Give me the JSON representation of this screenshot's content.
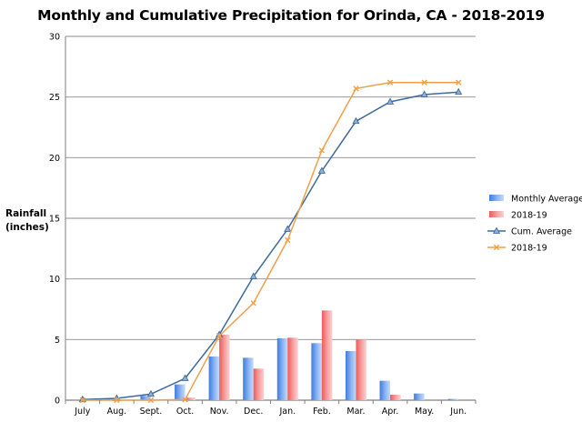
{
  "chart_data": {
    "type": "bar",
    "title": "Monthly and Cumulative Precipitation for Orinda, CA - 2018-2019",
    "ylabel_line1": "Rainfall",
    "ylabel_line2": "(inches)",
    "xlabel": "",
    "ylim": [
      0,
      30
    ],
    "yticks": [
      0,
      5,
      10,
      15,
      20,
      25,
      30
    ],
    "grid": true,
    "legend_position": "right",
    "categories": [
      "July",
      "Aug.",
      "Sept.",
      "Oct.",
      "Nov.",
      "Dec.",
      "Jan.",
      "Feb.",
      "Mar.",
      "Apr.",
      "May.",
      "Jun."
    ],
    "series": [
      {
        "name": "Monthly Average",
        "kind": "bar",
        "color": "#6fa0e6",
        "values": [
          0.0,
          0.05,
          0.35,
          1.3,
          3.6,
          3.5,
          5.1,
          4.7,
          4.05,
          1.6,
          0.55,
          0.1
        ]
      },
      {
        "name": "2018-19",
        "kind": "bar",
        "color": "#f28a8a",
        "values": [
          0.0,
          0.0,
          0.0,
          0.2,
          5.4,
          2.6,
          5.15,
          7.4,
          5.0,
          0.45,
          0.0,
          0.0
        ]
      },
      {
        "name": "Cum. Average",
        "kind": "line",
        "marker": "triangle",
        "color": "#3d6a9b",
        "values": [
          0.05,
          0.15,
          0.5,
          1.8,
          5.4,
          10.2,
          14.1,
          18.9,
          23.0,
          24.6,
          25.2,
          25.4
        ]
      },
      {
        "name": "2018-19",
        "kind": "line",
        "marker": "x",
        "color": "#f0a04b",
        "values": [
          0.0,
          0.0,
          0.0,
          0.05,
          5.3,
          8.0,
          13.2,
          20.6,
          25.7,
          26.2,
          26.2,
          26.2
        ]
      }
    ]
  }
}
